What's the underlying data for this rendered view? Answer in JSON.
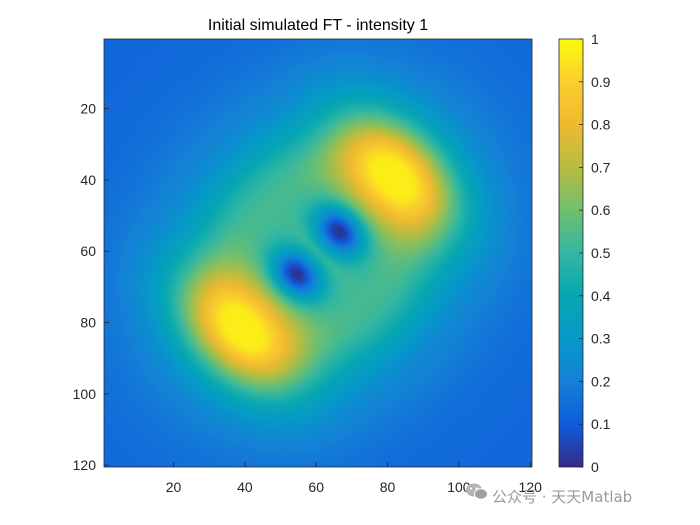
{
  "chart_data": {
    "type": "heatmap",
    "title": "Initial simulated FT - intensity 1",
    "xlabel": "",
    "ylabel": "",
    "xlim": [
      0.5,
      120.5
    ],
    "ylim": [
      0.5,
      120.5
    ],
    "y_reversed": true,
    "xticks": [
      20,
      40,
      60,
      80,
      100,
      120
    ],
    "xtick_labels": [
      "20",
      "40",
      "60",
      "80",
      "100",
      "120"
    ],
    "yticks": [
      20,
      40,
      60,
      80,
      100,
      120
    ],
    "ytick_labels": [
      "20",
      "40",
      "60",
      "80",
      "100",
      "120"
    ],
    "grid": false,
    "colormap": "parula",
    "clim": [
      0,
      1
    ],
    "colorbar_ticks": [
      0,
      0.1,
      0.2,
      0.3,
      0.4,
      0.5,
      0.6,
      0.7,
      0.8,
      0.9,
      1
    ],
    "colorbar_labels": [
      "0",
      "0.1",
      "0.2",
      "0.3",
      "0.4",
      "0.5",
      "0.6",
      "0.7",
      "0.8",
      "0.9",
      "1"
    ],
    "colorbar_position": "right",
    "grid_size": [
      120,
      120
    ],
    "features": [
      {
        "kind": "peak",
        "x": 80,
        "y": 43,
        "value": 0.95
      },
      {
        "kind": "peak",
        "x": 40,
        "y": 80,
        "value": 0.95
      },
      {
        "kind": "minimum",
        "x": 66,
        "y": 54,
        "value": 0.05
      },
      {
        "kind": "minimum",
        "x": 54,
        "y": 67,
        "value": 0.05
      },
      {
        "kind": "background",
        "value": 0.15
      }
    ]
  },
  "watermark": {
    "text": "公众号 · 天天Matlab",
    "icon": "wechat-icon"
  }
}
